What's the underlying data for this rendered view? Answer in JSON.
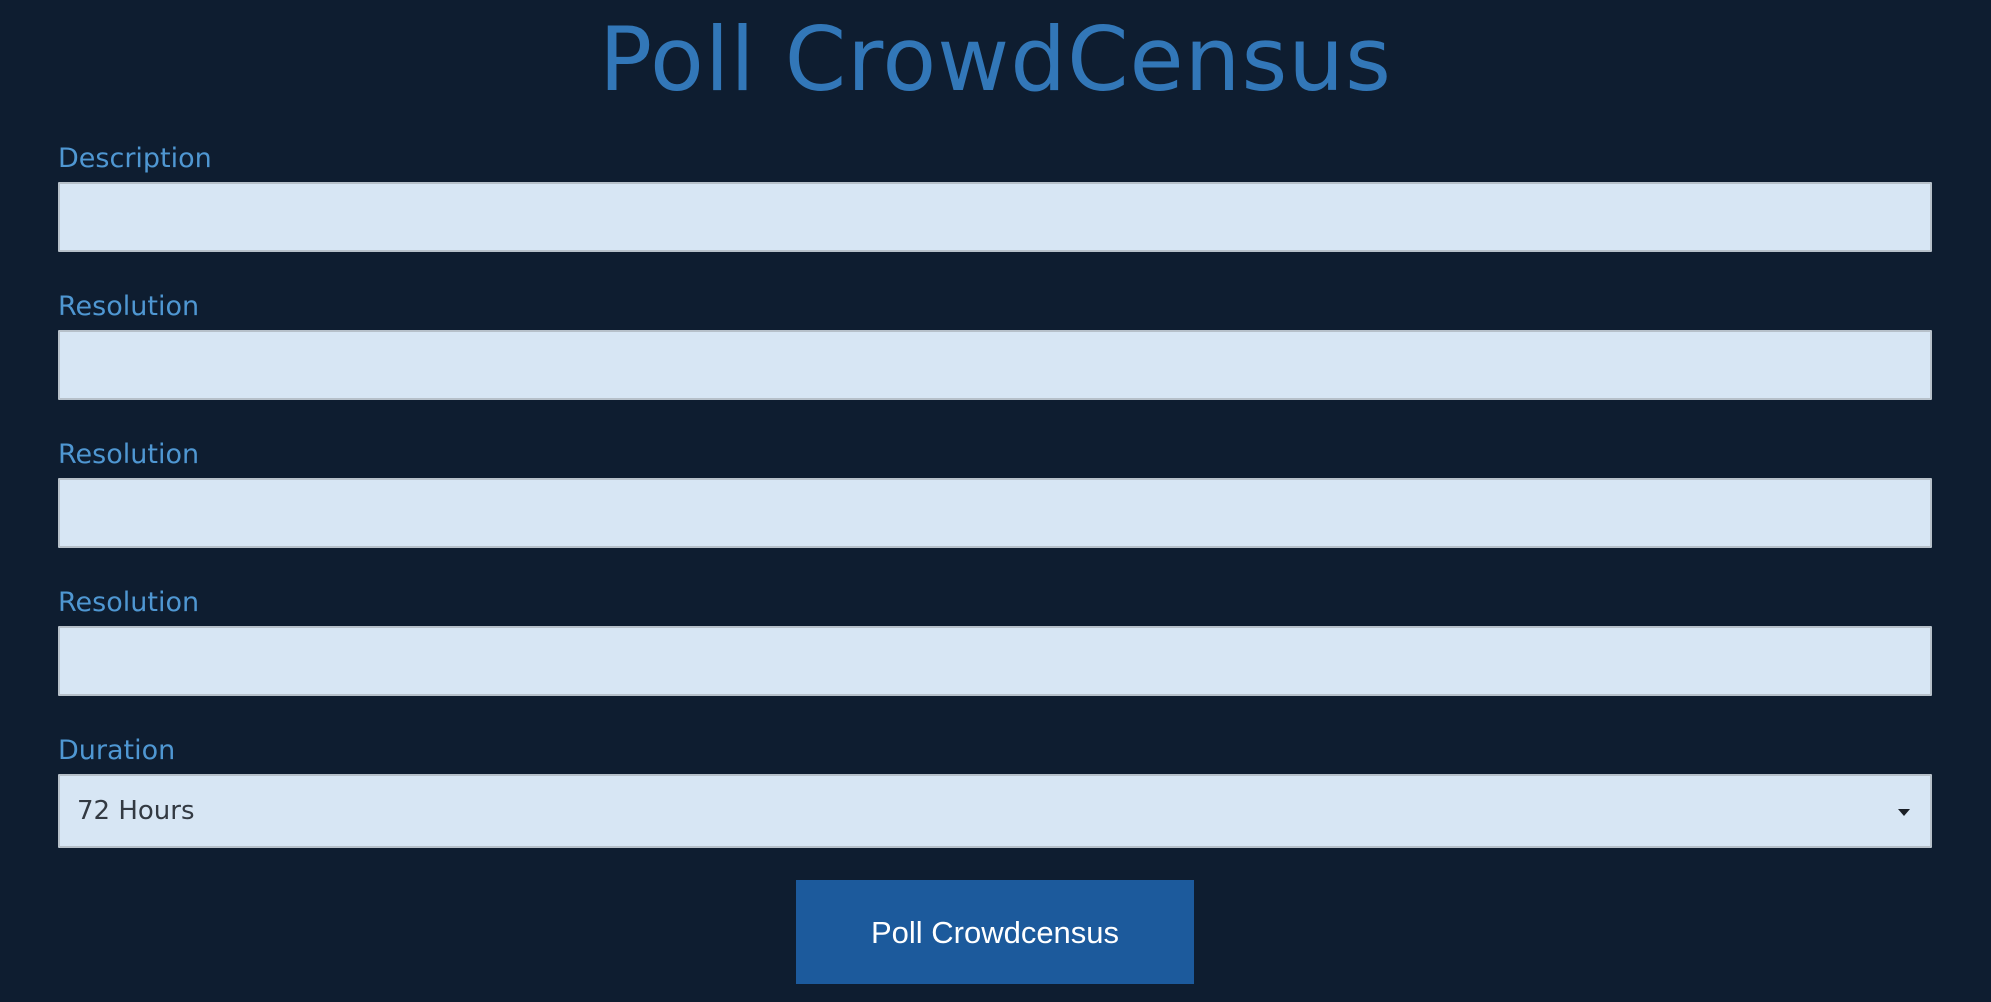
{
  "page": {
    "title": "Poll CrowdCensus"
  },
  "form": {
    "description_label": "Description",
    "description_value": "",
    "resolution_fields": [
      {
        "label": "Resolution",
        "value": ""
      },
      {
        "label": "Resolution",
        "value": ""
      },
      {
        "label": "Resolution",
        "value": ""
      }
    ],
    "duration_label": "Duration",
    "duration_selected": "72 Hours",
    "submit_label": "Poll Crowdcensus"
  },
  "colors": {
    "background": "#0e1d30",
    "title": "#3277b8",
    "label": "#4f97d2",
    "field_fill": "#d7e6f4",
    "button": "#1c5a9c"
  },
  "icons": {
    "duration_dropdown": "caret-down-icon"
  }
}
